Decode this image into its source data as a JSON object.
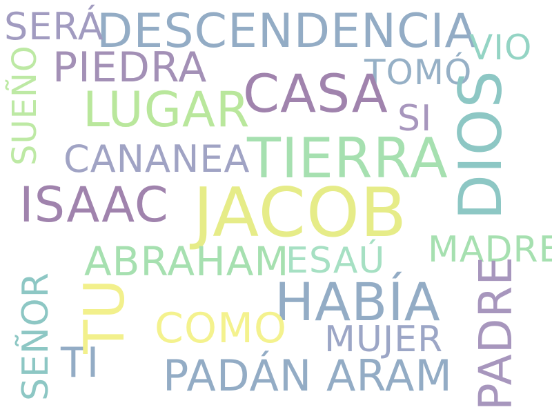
{
  "words": {
    "jacob": {
      "text": "JACOB",
      "color": "#e6ec88"
    },
    "descendencia": {
      "text": "DESCENDENCIA",
      "color": "#93acc5"
    },
    "dios": {
      "text": "DIOS",
      "color": "#8dc7c4"
    },
    "tierra": {
      "text": "TIERRA",
      "color": "#a6e0b0"
    },
    "casa": {
      "text": "CASA",
      "color": "#a083ad"
    },
    "isaac": {
      "text": "ISAAC",
      "color": "#a083ad"
    },
    "habia": {
      "text": "HABÍA",
      "color": "#93acc5"
    },
    "tu": {
      "text": "TU",
      "color": "#f2f08c"
    },
    "padre": {
      "text": "PADRE",
      "color": "#a796bd"
    },
    "lugar": {
      "text": "LUGAR",
      "color": "#b9e79c"
    },
    "piedra": {
      "text": "PIEDRA",
      "color": "#a390b6"
    },
    "abraham": {
      "text": "ABRAHAM",
      "color": "#a6e0b0"
    },
    "padan_aram": {
      "text": "PADÁN ARAM",
      "color": "#93acc5"
    },
    "sera": {
      "text": "SERÁ",
      "color": "#a19bc0"
    },
    "como": {
      "text": "COMO",
      "color": "#f4f28e"
    },
    "cananea": {
      "text": "CANANEA",
      "color": "#a0a3c4"
    },
    "madre": {
      "text": "MADRE",
      "color": "#a6e0b0"
    },
    "tomo": {
      "text": "TOMÓ",
      "color": "#96b0c6"
    },
    "esau": {
      "text": "ESAÚ",
      "color": "#a6e0c3"
    },
    "mujer": {
      "text": "MUJER",
      "color": "#9ca6c6"
    },
    "senor": {
      "text": "SEÑOR",
      "color": "#8dc7c4"
    },
    "sueno": {
      "text": "SUEÑO",
      "color": "#bde9a4"
    },
    "ti": {
      "text": "TI",
      "color": "#93acc5"
    },
    "si": {
      "text": "SI",
      "color": "#a796bd"
    },
    "vio": {
      "text": "VIO",
      "color": "#94d4c4"
    }
  }
}
